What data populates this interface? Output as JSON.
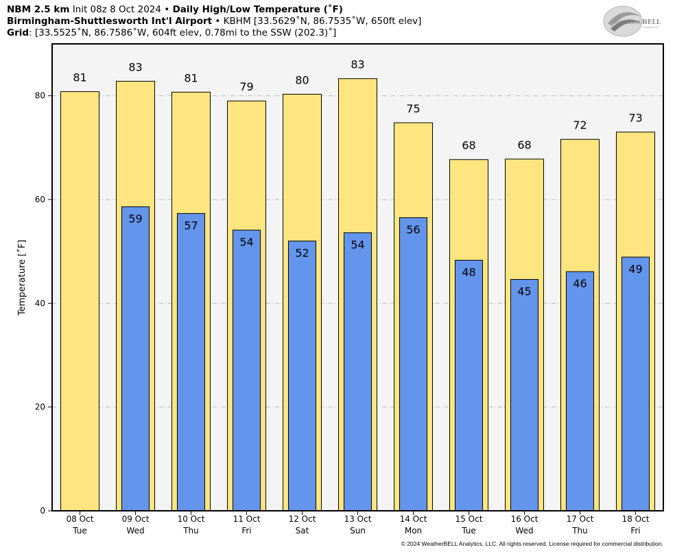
{
  "header": {
    "line1_bold": "NBM 2.5 km",
    "line1_init": "Init 08z 8 Oct 2024",
    "line1_sep": "•",
    "line1_product": "Daily High/Low Temperature (˚F)",
    "line2_bold": "Birmingham-Shuttlesworth Int'l Airport",
    "line2_sep": "•",
    "line2_rest": "KBHM [33.5629˚N, 86.7535˚W, 650ft elev]",
    "line3_bold": "Grid",
    "line3_rest": ": [33.5525˚N, 86.7586˚W, 604ft elev, 0.78mi to the SSW (202.3)˚]"
  },
  "logo": {
    "brand_left": "Weather",
    "brand_right": "BELL",
    "brand_sub": "Analytics LLC"
  },
  "copyright": "© 2024 WeatherBELL Analytics, LLC. All rights reserved. License required for commercial distribution.",
  "colors": {
    "high": "#FFE57F",
    "low": "#6495ED",
    "plot_bg": "#F4F4F4",
    "grid": "#BBBBBB"
  },
  "chart_data": {
    "type": "bar",
    "ylabel": "Temperature [˚F]",
    "ylim": [
      0,
      90
    ],
    "yticks": [
      0,
      20,
      40,
      60,
      80
    ],
    "grid": true,
    "categories": [
      "08 Oct",
      "09 Oct",
      "10 Oct",
      "11 Oct",
      "12 Oct",
      "13 Oct",
      "14 Oct",
      "15 Oct",
      "16 Oct",
      "17 Oct",
      "18 Oct"
    ],
    "weekdays": [
      "Tue",
      "Wed",
      "Thu",
      "Fri",
      "Sat",
      "Sun",
      "Mon",
      "Tue",
      "Wed",
      "Thu",
      "Fri"
    ],
    "series": [
      {
        "values": [
          80.8,
          82.8,
          80.7,
          79.0,
          80.3,
          83.3,
          74.8,
          67.7,
          67.8,
          71.6,
          73.0
        ],
        "labels": [
          "81",
          "83",
          "81",
          "79",
          "80",
          "83",
          "75",
          "68",
          "68",
          "72",
          "73"
        ]
      },
      {
        "values": [
          null,
          58.6,
          57.3,
          54.1,
          52.0,
          53.6,
          56.5,
          48.3,
          44.6,
          46.1,
          48.9
        ],
        "labels": [
          "",
          "59",
          "57",
          "54",
          "52",
          "54",
          "56",
          "48",
          "45",
          "46",
          "49"
        ]
      }
    ]
  }
}
